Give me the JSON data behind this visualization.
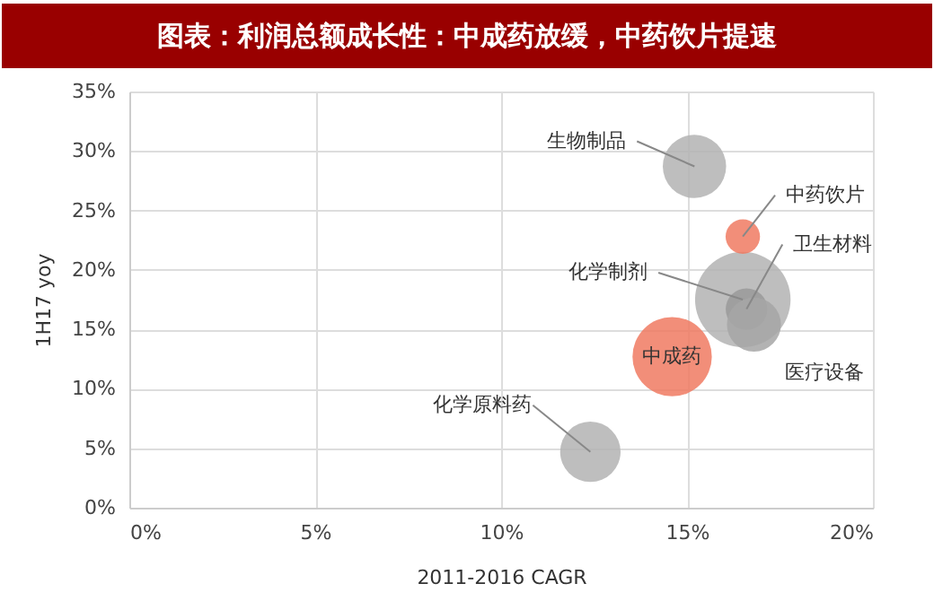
{
  "chart_data": {
    "type": "bubble",
    "title": "图表：利润总额成长性：中成药放缓，中药饮片提速",
    "xlabel": "2011-2016 CAGR",
    "ylabel": "1H17 yoy",
    "x": [
      16.5,
      15.2,
      16.6,
      16.5,
      16.8,
      14.6,
      12.4
    ],
    "values": [
      17.5,
      28.7,
      16.7,
      22.8,
      15.4,
      12.7,
      4.7
    ],
    "sizes": [
      1,
      0.44,
      0.19,
      0.13,
      0.32,
      0.69,
      0.4
    ],
    "colors": [
      "#b3b3b3",
      "#b3b3b3",
      "#9a9a9a",
      "#f07a62",
      "#a6a6a6",
      "#f07a62",
      "#b3b3b3"
    ],
    "annotations": [
      {
        "text": "化学制剂",
        "x": 16.5,
        "y": 17.5
      },
      {
        "text": "生物制品",
        "x": 15.2,
        "y": 28.7
      },
      {
        "text": "卫生材料",
        "x": 16.6,
        "y": 16.7
      },
      {
        "text": "中药饮片",
        "x": 16.5,
        "y": 22.8
      },
      {
        "text": "医疗设备",
        "x": 16.8,
        "y": 15.4
      },
      {
        "text": "中成药",
        "x": 14.6,
        "y": 12.7
      },
      {
        "text": "化学原料药",
        "x": 12.4,
        "y": 4.7
      }
    ],
    "xlim": [
      0,
      20
    ],
    "xticks": [
      {
        "value": 0,
        "label": "0%"
      },
      {
        "value": 5,
        "label": "5%"
      },
      {
        "value": 10,
        "label": "10%"
      },
      {
        "value": 15,
        "label": "15%"
      },
      {
        "value": 20,
        "label": "20%"
      }
    ],
    "ylim": [
      0,
      35
    ],
    "yticks": [
      {
        "value": 0,
        "label": "0%"
      },
      {
        "value": 5,
        "label": "5%"
      },
      {
        "value": 10,
        "label": "10%"
      },
      {
        "value": 15,
        "label": "15%"
      },
      {
        "value": 20,
        "label": "20%"
      },
      {
        "value": 25,
        "label": "25%"
      },
      {
        "value": 30,
        "label": "30%"
      },
      {
        "value": 35,
        "label": "35%"
      }
    ],
    "grid": true
  }
}
